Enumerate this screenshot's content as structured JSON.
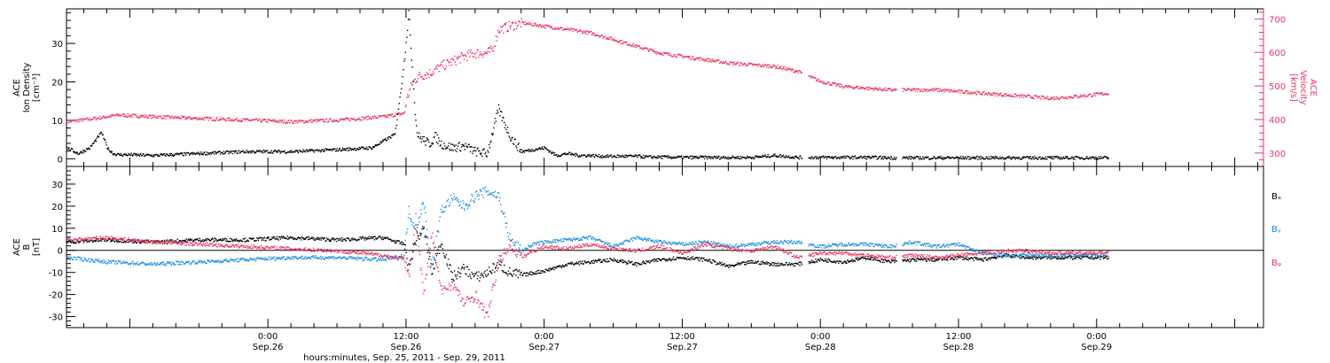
{
  "colors": {
    "black": "#000000",
    "pink": "#e8365f",
    "blue": "#1a8ee0"
  },
  "x_axis": {
    "title": "hours:minutes, Sep. 25, 2011 - Sep. 29, 2011",
    "range_hours": [
      -17.5,
      86.5
    ],
    "ticks": [
      {
        "h": 0,
        "time": "0:00",
        "date": "Sep.26"
      },
      {
        "h": 12,
        "time": "12:00",
        "date": "Sep.26"
      },
      {
        "h": 24,
        "time": "0:00",
        "date": "Sep.27"
      },
      {
        "h": 36,
        "time": "12:00",
        "date": "Sep.27"
      },
      {
        "h": 48,
        "time": "0:00",
        "date": "Sep.28"
      },
      {
        "h": 60,
        "time": "12:00",
        "date": "Sep.28"
      },
      {
        "h": 72,
        "time": "0:00",
        "date": "Sep.29"
      }
    ]
  },
  "chart_data": [
    {
      "type": "scatter",
      "title": "",
      "ylabel_left": [
        "ACE",
        "Ion Density",
        "[cm⁻³]"
      ],
      "ylabel_right": [
        "ACE",
        "Velocity",
        "[km/s]"
      ],
      "ylim_left": [
        -2,
        39
      ],
      "ylim_right": [
        260,
        730
      ],
      "left_ticks": [
        0,
        10,
        20,
        30
      ],
      "right_ticks": [
        300,
        400,
        500,
        600,
        700
      ],
      "series": [
        {
          "axis": "left",
          "color": "black",
          "x": [
            -17.5,
            -16.5,
            -15.5,
            -14.5,
            -14,
            -13.5,
            -13,
            -12,
            -10,
            -6,
            -2,
            2,
            6,
            9,
            11,
            11.6,
            12.2,
            12.5,
            12.8,
            13,
            13.5,
            14,
            14.5,
            15,
            16,
            17,
            18,
            19,
            20,
            21,
            22,
            24,
            25,
            26,
            27,
            28,
            29,
            30,
            31,
            32,
            33,
            34,
            36,
            38,
            40,
            42,
            44,
            46,
            48,
            50,
            52,
            54,
            56,
            58,
            60,
            62,
            64,
            66,
            68,
            70,
            73
          ],
          "y": [
            3,
            1.5,
            3,
            7,
            3,
            1.5,
            1.2,
            1.2,
            1,
            1.5,
            2,
            2,
            2.5,
            3,
            6.5,
            20,
            38,
            24,
            10,
            6,
            5,
            4,
            6,
            4,
            3,
            3.5,
            2,
            1.5,
            13,
            6,
            2,
            3,
            1,
            1.5,
            1,
            1,
            0.8,
            0.8,
            0.8,
            0.8,
            0.6,
            0.6,
            0.5,
            0.5,
            0.5,
            0.5,
            1,
            0.5,
            0.5,
            0.5,
            0.5,
            0.4,
            0.4,
            0.4,
            0.4,
            0.4,
            0.4,
            0.4,
            0.4,
            0.4,
            0.4
          ]
        },
        {
          "axis": "right",
          "color": "pink",
          "x": [
            -17.5,
            -15,
            -13,
            -10,
            -6,
            -2,
            2,
            6,
            10,
            11.8,
            12,
            12.5,
            13,
            14,
            15,
            16,
            17,
            18,
            19,
            19.5,
            20,
            21,
            22,
            23,
            24,
            25,
            26,
            27,
            28,
            30,
            32,
            34,
            36,
            38,
            40,
            42,
            44,
            46,
            47,
            48,
            50,
            52,
            54,
            56,
            58,
            60,
            62,
            64,
            66,
            68,
            70,
            73
          ],
          "y": [
            395,
            405,
            415,
            410,
            405,
            400,
            395,
            400,
            410,
            420,
            460,
            510,
            530,
            540,
            560,
            575,
            590,
            600,
            600,
            610,
            670,
            680,
            690,
            685,
            680,
            675,
            670,
            665,
            660,
            640,
            620,
            600,
            590,
            580,
            570,
            565,
            560,
            545,
            530,
            515,
            500,
            495,
            490,
            490,
            490,
            485,
            480,
            475,
            470,
            465,
            470,
            480
          ]
        }
      ]
    },
    {
      "type": "scatter",
      "ylabel_left": [
        "ACE",
        "B",
        "[nT]"
      ],
      "ylim": [
        -35,
        38
      ],
      "left_ticks": [
        -30,
        -20,
        -10,
        0,
        10,
        20,
        30
      ],
      "legend": [
        "Bₓ",
        "Bᵧ",
        "Bᵩ"
      ],
      "series": [
        {
          "name": "Bx",
          "color": "black",
          "x": [
            -17.5,
            -14,
            -10,
            -6,
            -2,
            2,
            6,
            10,
            11.8,
            12.2,
            12.8,
            13.5,
            14.2,
            15,
            16,
            17,
            18,
            19,
            20,
            21,
            22,
            23,
            24,
            26,
            28,
            30,
            32,
            34,
            36,
            38,
            40,
            42,
            44,
            46,
            48,
            50,
            52,
            54,
            56,
            58,
            60,
            62,
            64,
            66,
            68,
            70,
            73
          ],
          "y": [
            4,
            5,
            4,
            5,
            5,
            6,
            5,
            6,
            3,
            -8,
            5,
            10,
            -10,
            4,
            -12,
            -8,
            -12,
            -10,
            -6,
            -10,
            -11,
            -10,
            -9,
            -6,
            -5,
            -4,
            -6,
            -4,
            -3,
            -4,
            -7,
            -5,
            -6,
            -6,
            -4,
            -5,
            -3,
            -5,
            -4,
            -4,
            -3,
            -4,
            -2,
            -3,
            -3,
            -3,
            -3
          ]
        },
        {
          "name": "By",
          "color": "blue",
          "x": [
            -17.5,
            -14,
            -10,
            -6,
            -2,
            2,
            6,
            10,
            11.8,
            12.2,
            12.8,
            13.5,
            14.2,
            15,
            16,
            17,
            18,
            19,
            20,
            21,
            22,
            23,
            24,
            26,
            28,
            30,
            32,
            34,
            36,
            38,
            40,
            42,
            44,
            46,
            48,
            50,
            52,
            54,
            56,
            58,
            60,
            62,
            64,
            66,
            68,
            70,
            73
          ],
          "y": [
            -3,
            -5,
            -6,
            -5,
            -4,
            -3,
            -3,
            -4,
            -2,
            18,
            10,
            22,
            -8,
            18,
            24,
            20,
            25,
            27,
            25,
            5,
            0,
            3,
            4,
            5,
            6,
            2,
            6,
            4,
            3,
            4,
            2,
            3,
            4,
            4,
            2,
            3,
            3,
            2,
            4,
            2,
            3,
            -1,
            -2,
            -2,
            -2,
            -2,
            -2
          ]
        },
        {
          "name": "Bz",
          "color": "pink",
          "x": [
            -17.5,
            -14,
            -10,
            -6,
            -2,
            2,
            6,
            10,
            11.8,
            12.2,
            12.8,
            13.5,
            14.2,
            15,
            16,
            17,
            18,
            19,
            20,
            21,
            22,
            23,
            24,
            26,
            28,
            30,
            32,
            34,
            36,
            38,
            40,
            42,
            44,
            46,
            48,
            50,
            52,
            54,
            56,
            58,
            60,
            62,
            64,
            66,
            68,
            70,
            73
          ],
          "y": [
            5,
            6,
            4,
            3,
            2,
            1,
            0,
            -2,
            -4,
            -12,
            15,
            -20,
            8,
            -18,
            -15,
            -24,
            -20,
            -30,
            -5,
            3,
            -3,
            0,
            2,
            1,
            3,
            1,
            0,
            2,
            -1,
            3,
            1,
            0,
            2,
            -3,
            -1,
            -1,
            -2,
            -3,
            -2,
            -3,
            -2,
            -1,
            0,
            0,
            -1,
            -1,
            -1
          ]
        }
      ]
    }
  ]
}
